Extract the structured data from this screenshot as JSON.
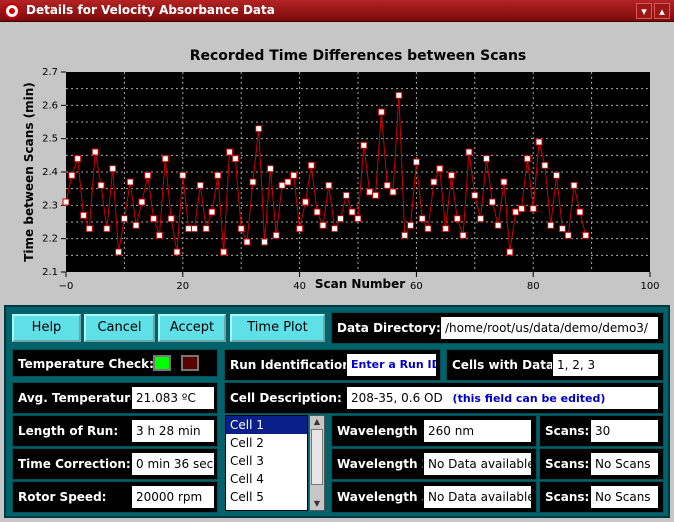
{
  "window": {
    "title": "Details for Velocity Absorbance Data"
  },
  "colors": {
    "titlebar": "#8b1010",
    "plot_background": "#000000",
    "series_line": "#cc0000",
    "marker_fill": "#ffffff",
    "panel": "#00636b",
    "button": "#5ee0e6",
    "temp_ok": "#00ff00",
    "temp_fail": "#5a0000"
  },
  "chart_data": {
    "type": "line",
    "title": "Recorded Time Differences between Scans",
    "xlabel": "Scan Number",
    "ylabel": "Time between Scans (min)",
    "xlim": [
      0,
      100
    ],
    "ylim": [
      2.1,
      2.7
    ],
    "xticks": [
      "0",
      "20",
      "40",
      "60",
      "80",
      "100"
    ],
    "yticks": [
      "2.1",
      "2.2",
      "2.3",
      "2.4",
      "2.5",
      "2.6",
      "2.7"
    ],
    "grid": true,
    "markers": "square",
    "x": [
      0,
      1,
      2,
      3,
      4,
      5,
      6,
      7,
      8,
      9,
      10,
      11,
      12,
      13,
      14,
      15,
      16,
      17,
      18,
      19,
      20,
      21,
      22,
      23,
      24,
      25,
      26,
      27,
      28,
      29,
      30,
      31,
      32,
      33,
      34,
      35,
      36,
      37,
      38,
      39,
      40,
      41,
      42,
      43,
      44,
      45,
      46,
      47,
      48,
      49,
      50,
      51,
      52,
      53,
      54,
      55,
      56,
      57,
      58,
      59,
      60,
      61,
      62,
      63,
      64,
      65,
      66,
      67,
      68,
      69,
      70,
      71,
      72,
      73,
      74,
      75,
      76,
      77,
      78,
      79,
      80,
      81,
      82,
      83,
      84,
      85,
      86,
      87,
      88,
      89
    ],
    "y": [
      2.31,
      2.39,
      2.44,
      2.27,
      2.23,
      2.46,
      2.36,
      2.23,
      2.41,
      2.16,
      2.26,
      2.37,
      2.24,
      2.31,
      2.39,
      2.26,
      2.21,
      2.44,
      2.26,
      2.16,
      2.39,
      2.23,
      2.23,
      2.36,
      2.23,
      2.28,
      2.39,
      2.16,
      2.46,
      2.44,
      2.23,
      2.19,
      2.37,
      2.53,
      2.19,
      2.41,
      2.21,
      2.36,
      2.37,
      2.39,
      2.23,
      2.31,
      2.42,
      2.28,
      2.24,
      2.36,
      2.23,
      2.26,
      2.33,
      2.28,
      2.26,
      2.48,
      2.34,
      2.33,
      2.58,
      2.36,
      2.34,
      2.63,
      2.21,
      2.24,
      2.43,
      2.26,
      2.23,
      2.37,
      2.41,
      2.23,
      2.39,
      2.26,
      2.21,
      2.46,
      2.33,
      2.26,
      2.44,
      2.31,
      2.24,
      2.37,
      2.16,
      2.28,
      2.29,
      2.44,
      2.29,
      2.49,
      2.42,
      2.24,
      2.39,
      2.23,
      2.21,
      2.36,
      2.28,
      2.21
    ]
  },
  "buttons": {
    "help": "Help",
    "cancel": "Cancel",
    "accept": "Accept",
    "time_plot": "Time Plot"
  },
  "fields": {
    "data_directory": {
      "label": "Data Directory:",
      "value": "/home/root/us/data/demo/demo3/"
    },
    "temperature_check": {
      "label": "Temperature Check:"
    },
    "run_identification": {
      "label": "Run Identification:",
      "value": "Enter a Run ID"
    },
    "cells_with_data": {
      "label": "Cells with Data:",
      "value": "1, 2, 3"
    },
    "avg_temperature": {
      "label": "Avg. Temperature:",
      "value": "21.083 ºC"
    },
    "cell_description": {
      "label": "Cell Description:",
      "value": "208-35, 0.6 OD",
      "hint": "(this field can be edited)"
    },
    "length_of_run": {
      "label": "Length of Run:",
      "value": "3 h 28 min"
    },
    "time_correction": {
      "label": "Time Correction:",
      "value": "0 min 36 sec"
    },
    "rotor_speed": {
      "label": "Rotor Speed:",
      "value": "20000 rpm"
    },
    "wavelength_1": {
      "label": "Wavelength 1:",
      "value": "260 nm",
      "scans_label": "Scans:",
      "scans": "30"
    },
    "wavelength_2": {
      "label": "Wavelength 2:",
      "value": "No Data available",
      "scans_label": "Scans:",
      "scans": "No Scans"
    },
    "wavelength_3": {
      "label": "Wavelength 3:",
      "value": "No Data available",
      "scans_label": "Scans:",
      "scans": "No Scans"
    }
  },
  "cell_list": {
    "items": [
      "Cell 1",
      "Cell 2",
      "Cell 3",
      "Cell 4",
      "Cell 5"
    ],
    "selected": "Cell 1"
  }
}
